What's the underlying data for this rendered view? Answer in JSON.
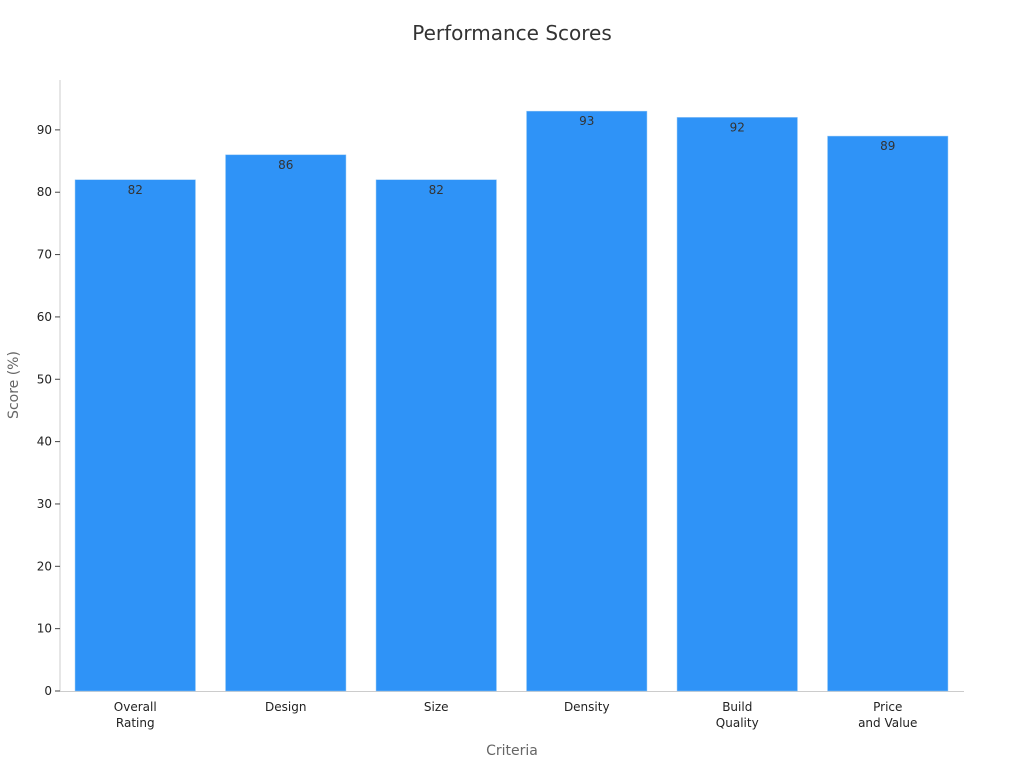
{
  "chart_data": {
    "type": "bar",
    "title": "Performance Scores",
    "x_label": "Criteria",
    "y_label": "Score (%)",
    "categories": [
      "Overall\nRating",
      "Design",
      "Size",
      "Density",
      "Build\nQuality",
      "Price\nand Value"
    ],
    "values": [
      82,
      86,
      82,
      93,
      92,
      89
    ],
    "color": "#2f93f7",
    "ylim": [
      0,
      98
    ],
    "yticks": [
      0,
      10,
      20,
      30,
      40,
      50,
      60,
      70,
      80,
      90
    ],
    "grid": false
  }
}
